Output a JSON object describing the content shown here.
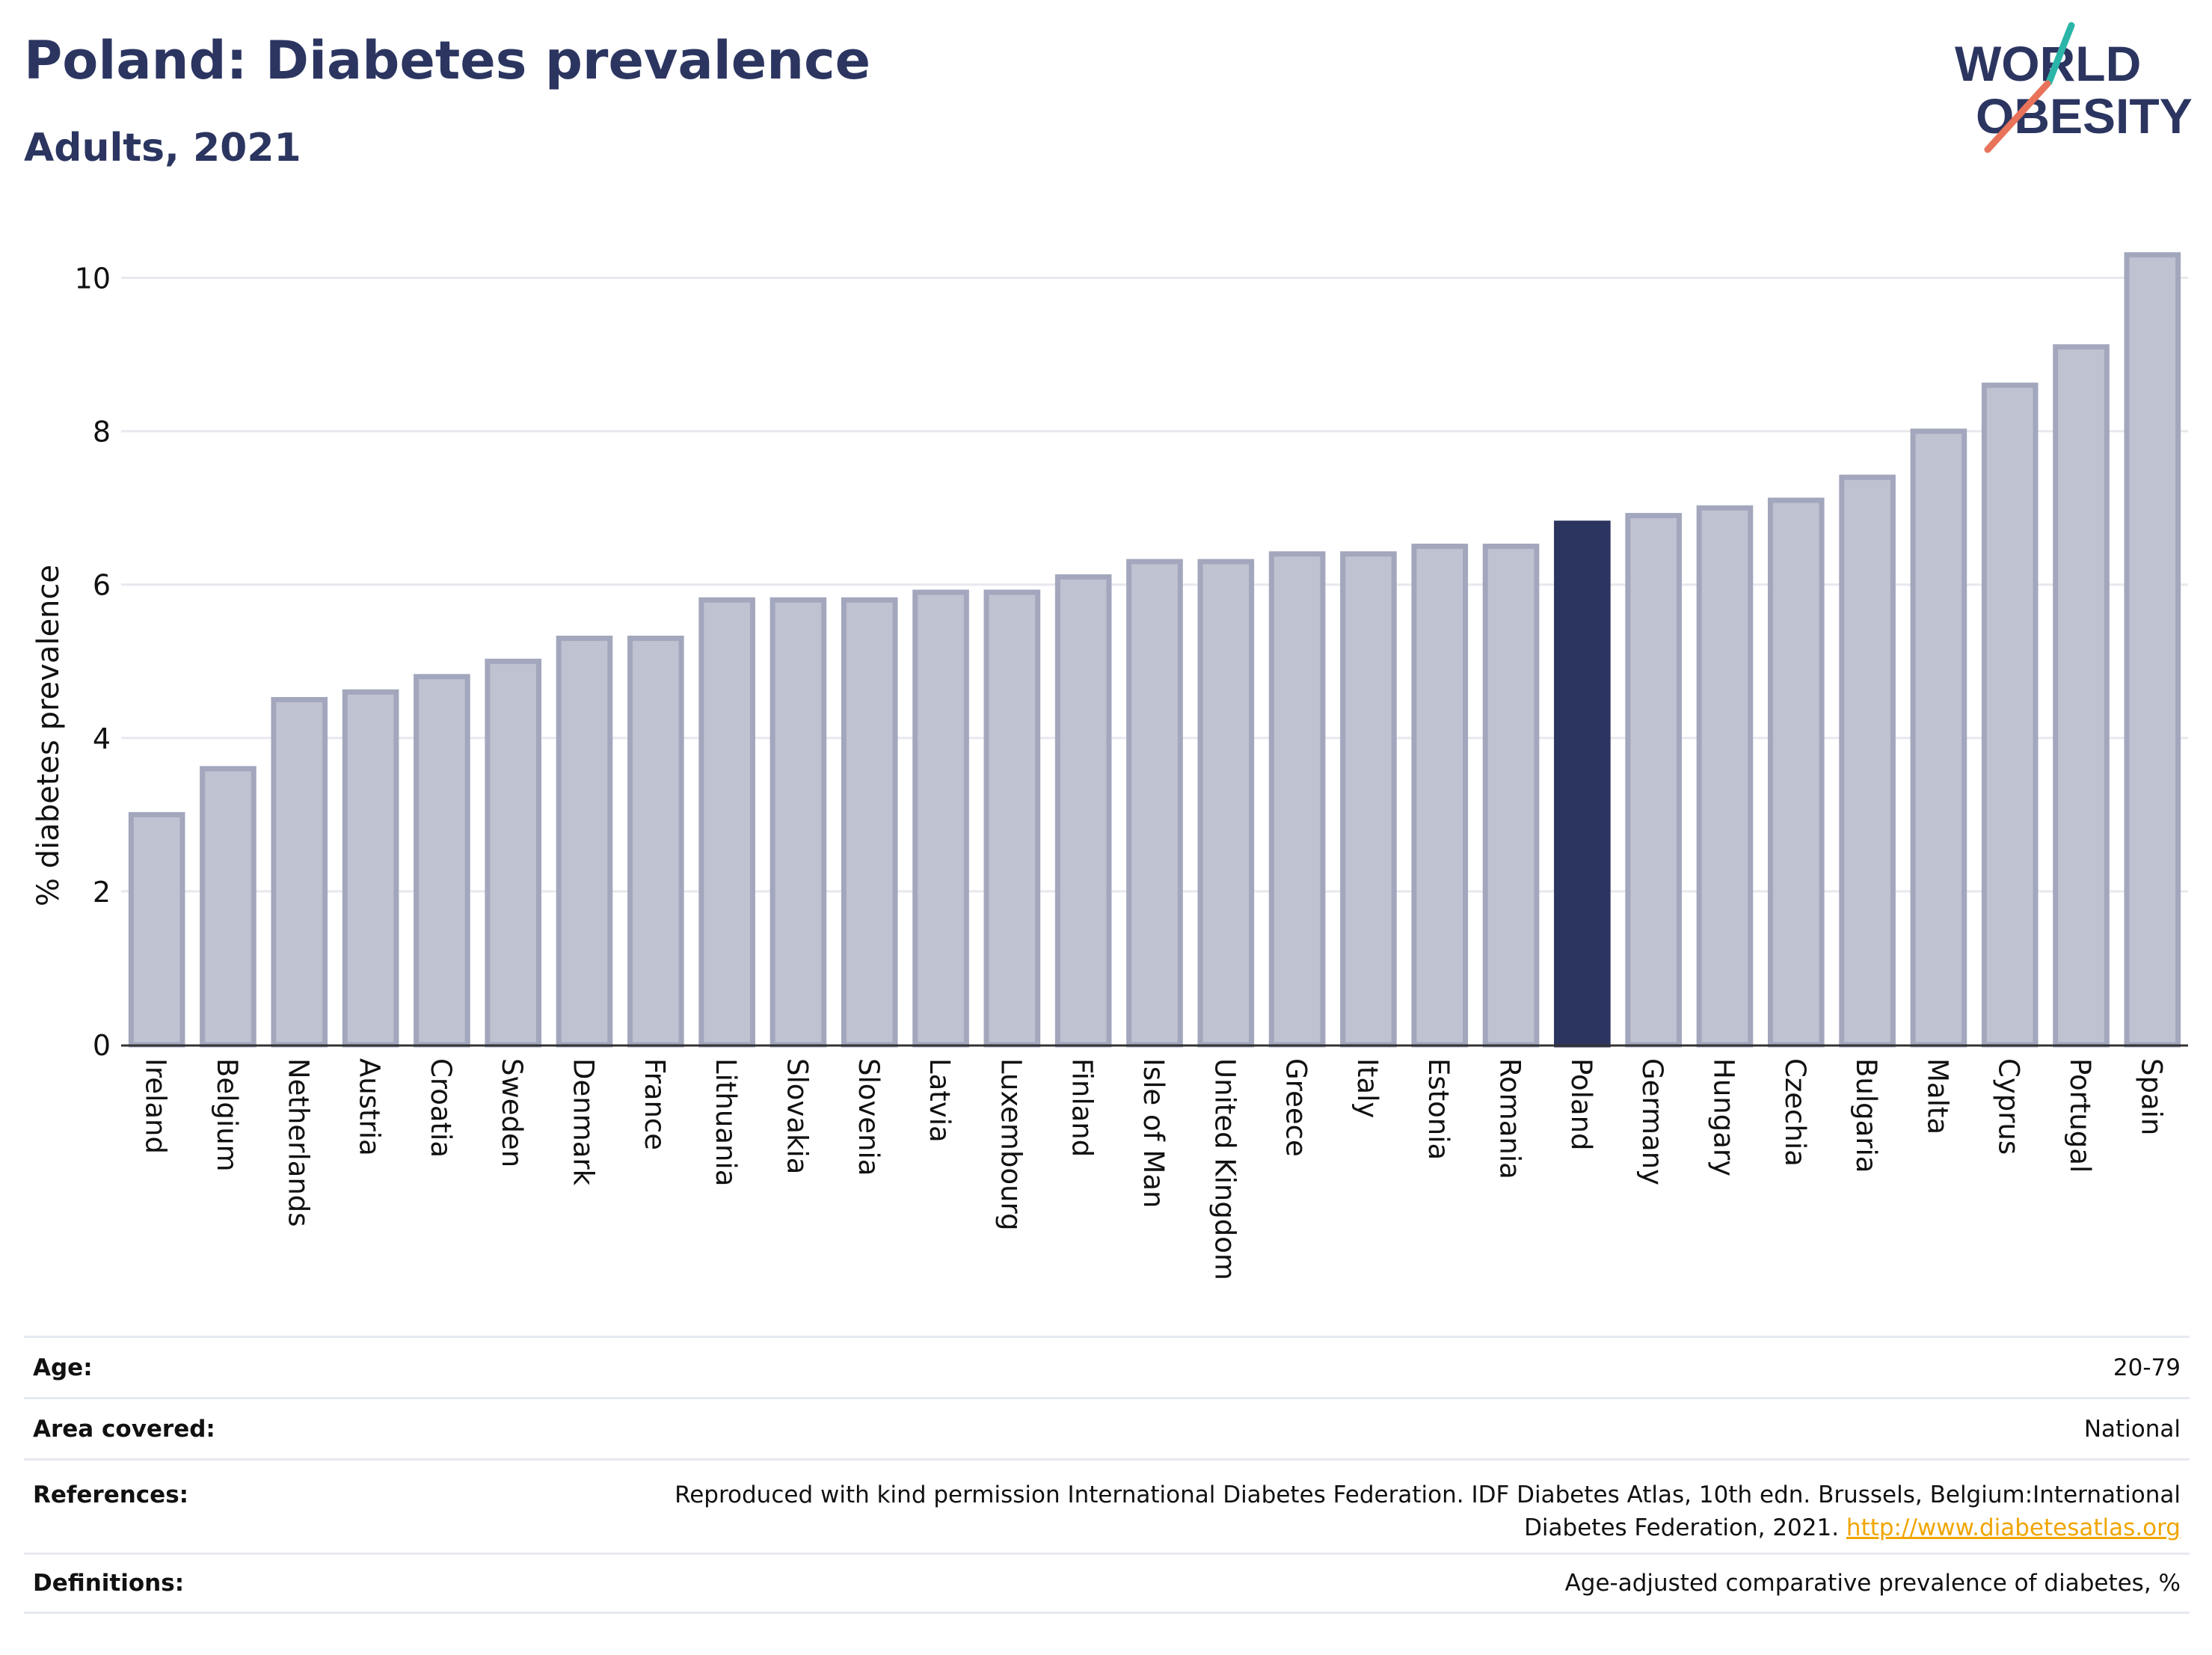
{
  "header": {
    "title": "Poland: Diabetes prevalence",
    "subtitle": "Adults, 2021"
  },
  "logo": {
    "line1": "WORLD",
    "line2": "OBESITY",
    "colors": {
      "text": "#2b3560",
      "teal": "#2bb5a8",
      "coral": "#e8735a"
    }
  },
  "chart_data": {
    "type": "bar",
    "ylabel": "% diabetes prevalence",
    "xlabel": "",
    "ylim": [
      0,
      10.6
    ],
    "yticks": [
      0,
      2,
      4,
      6,
      8,
      10
    ],
    "grid": true,
    "highlight": "Poland",
    "colors": {
      "bar": "#bfc2d0",
      "bar_edge": "#a3a7bd",
      "highlight": "#2b3560",
      "grid": "#e8e8ee"
    },
    "categories": [
      "Ireland",
      "Belgium",
      "Netherlands",
      "Austria",
      "Croatia",
      "Sweden",
      "Denmark",
      "France",
      "Lithuania",
      "Slovakia",
      "Slovenia",
      "Latvia",
      "Luxembourg",
      "Finland",
      "Isle of Man",
      "United Kingdom",
      "Greece",
      "Italy",
      "Estonia",
      "Romania",
      "Poland",
      "Germany",
      "Hungary",
      "Czechia",
      "Bulgaria",
      "Malta",
      "Cyprus",
      "Portugal",
      "Spain"
    ],
    "values": [
      3.0,
      3.6,
      4.5,
      4.6,
      4.8,
      5.0,
      5.3,
      5.3,
      5.8,
      5.8,
      5.8,
      5.9,
      5.9,
      6.1,
      6.3,
      6.3,
      6.4,
      6.4,
      6.5,
      6.5,
      6.8,
      6.9,
      7.0,
      7.1,
      7.4,
      8.0,
      8.6,
      9.1,
      10.3
    ]
  },
  "meta": {
    "age": {
      "label": "Age:",
      "value": "20-79"
    },
    "area": {
      "label": "Area covered:",
      "value": "National"
    },
    "references": {
      "label": "References:",
      "line1": "Reproduced with kind permission International Diabetes Federation.  IDF Diabetes Atlas, 10th edn. Brussels, Belgium:International",
      "line2": "Diabetes Federation, 2021. ",
      "link": "http://www.diabetesatlas.org"
    },
    "definitions": {
      "label": "Definitions:",
      "value": "Age-adjusted comparative prevalence of diabetes, %"
    }
  }
}
